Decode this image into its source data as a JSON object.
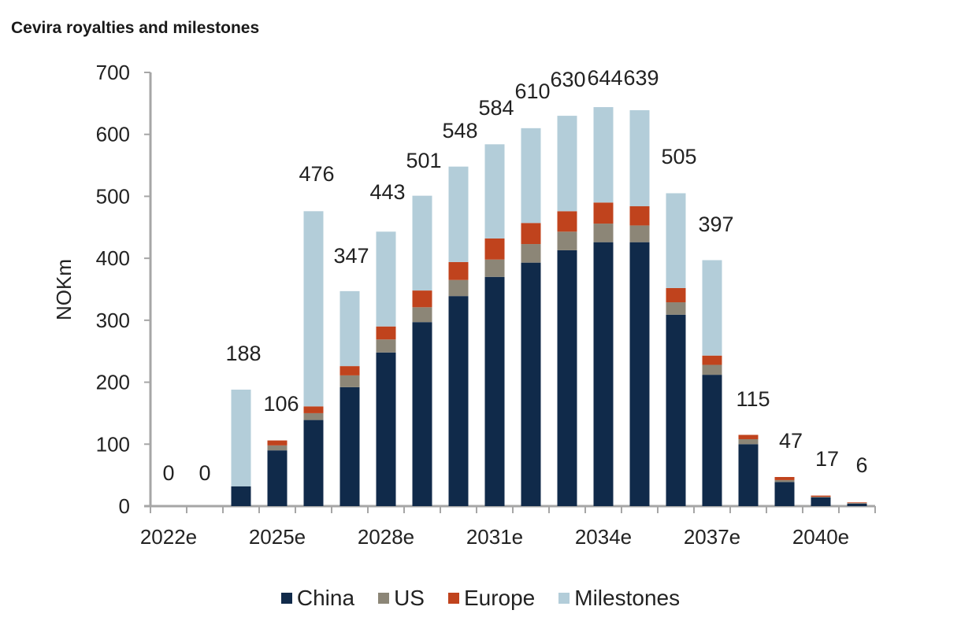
{
  "title": "Cevira royalties and milestones",
  "chart_data": {
    "type": "bar",
    "stacked": true,
    "title": "Cevira royalties and milestones",
    "xlabel": "",
    "ylabel": "NOKm",
    "ylim": [
      0,
      700
    ],
    "yticks": [
      0,
      100,
      200,
      300,
      400,
      500,
      600,
      700
    ],
    "categories": [
      "2022e",
      "2023e",
      "2024e",
      "2025e",
      "2026e",
      "2027e",
      "2028e",
      "2029e",
      "2030e",
      "2031e",
      "2032e",
      "2033e",
      "2034e",
      "2035e",
      "2036e",
      "2037e",
      "2038e",
      "2039e",
      "2040e",
      "2041e"
    ],
    "xtick_labels": [
      "2022e",
      "2025e",
      "2028e",
      "2031e",
      "2034e",
      "2037e",
      "2040e"
    ],
    "series": [
      {
        "name": "China",
        "color": "#102a4a",
        "values": [
          0,
          0,
          32,
          90,
          139,
          192,
          248,
          297,
          339,
          370,
          393,
          413,
          426,
          426,
          309,
          212,
          100,
          39,
          14,
          4
        ]
      },
      {
        "name": "US",
        "color": "#8c8677",
        "values": [
          0,
          0,
          0,
          8,
          11,
          19,
          21,
          24,
          26,
          28,
          30,
          30,
          30,
          27,
          20,
          16,
          8,
          3,
          1,
          1
        ]
      },
      {
        "name": "Europe",
        "color": "#c0431d",
        "values": [
          0,
          0,
          0,
          8,
          11,
          15,
          21,
          27,
          29,
          34,
          34,
          33,
          34,
          31,
          23,
          15,
          7,
          5,
          2,
          1
        ]
      },
      {
        "name": "Milestones",
        "color": "#b3cdd9",
        "values": [
          0,
          0,
          156,
          0,
          315,
          121,
          153,
          153,
          154,
          152,
          153,
          154,
          154,
          155,
          153,
          154,
          0,
          0,
          0,
          0
        ]
      }
    ],
    "totals": [
      0,
      0,
      188,
      106,
      476,
      347,
      443,
      501,
      548,
      584,
      610,
      630,
      644,
      639,
      505,
      397,
      115,
      47,
      17,
      6
    ],
    "legend": {
      "placement": "bottom",
      "entries": [
        "China",
        "US",
        "Europe",
        "Milestones"
      ]
    },
    "grid": false
  }
}
